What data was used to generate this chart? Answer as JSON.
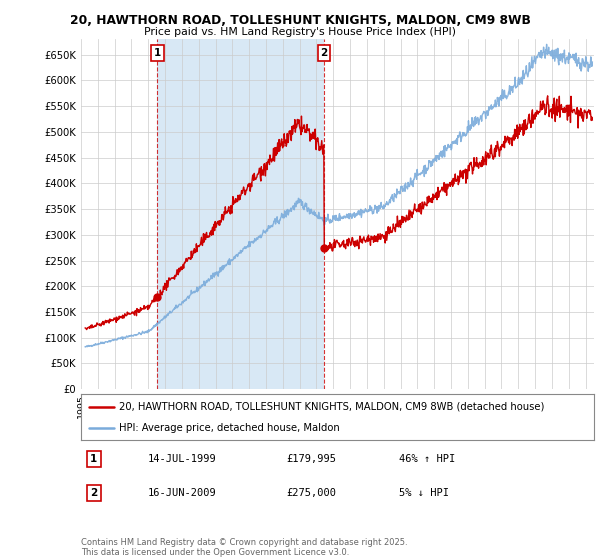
{
  "title_line1": "20, HAWTHORN ROAD, TOLLESHUNT KNIGHTS, MALDON, CM9 8WB",
  "title_line2": "Price paid vs. HM Land Registry's House Price Index (HPI)",
  "ylim": [
    0,
    680000
  ],
  "yticks": [
    0,
    50000,
    100000,
    150000,
    200000,
    250000,
    300000,
    350000,
    400000,
    450000,
    500000,
    550000,
    600000,
    650000
  ],
  "ytick_labels": [
    "£0",
    "£50K",
    "£100K",
    "£150K",
    "£200K",
    "£250K",
    "£300K",
    "£350K",
    "£400K",
    "£450K",
    "£500K",
    "£550K",
    "£600K",
    "£650K"
  ],
  "xlim_start": 1995.25,
  "xlim_end": 2025.5,
  "purchase1_x": 1999.54,
  "purchase1_y": 179995,
  "purchase2_x": 2009.46,
  "purchase2_y": 275000,
  "purchase1_label": "1",
  "purchase2_label": "2",
  "property_color": "#cc0000",
  "hpi_color": "#7aabdb",
  "shade_color": "#d8e8f5",
  "legend_property": "20, HAWTHORN ROAD, TOLLESHUNT KNIGHTS, MALDON, CM9 8WB (detached house)",
  "legend_hpi": "HPI: Average price, detached house, Maldon",
  "table_row1": [
    "1",
    "14-JUL-1999",
    "£179,995",
    "46% ↑ HPI"
  ],
  "table_row2": [
    "2",
    "16-JUN-2009",
    "£275,000",
    "5% ↓ HPI"
  ],
  "footer": "Contains HM Land Registry data © Crown copyright and database right 2025.\nThis data is licensed under the Open Government Licence v3.0.",
  "background_color": "#ffffff",
  "grid_color": "#cccccc"
}
